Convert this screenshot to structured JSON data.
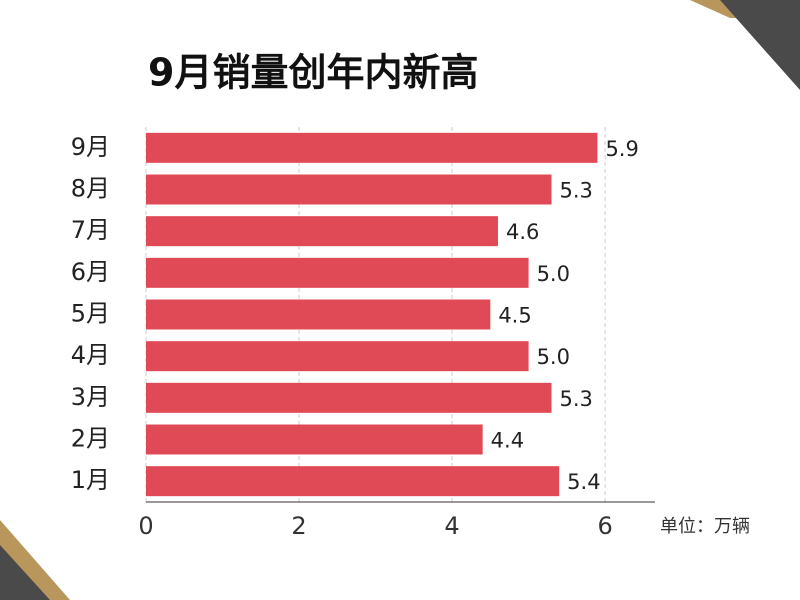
{
  "chart_data": {
    "type": "bar",
    "orientation": "horizontal",
    "title": "9月销量创年内新高",
    "categories": [
      "1月",
      "2月",
      "3月",
      "4月",
      "5月",
      "6月",
      "7月",
      "8月",
      "9月"
    ],
    "values": [
      5.4,
      4.4,
      5.3,
      5.0,
      4.5,
      5.0,
      4.6,
      5.3,
      5.9
    ],
    "value_labels": [
      "5.4",
      "4.4",
      "5.3",
      "5.0",
      "4.5",
      "5.0",
      "4.6",
      "5.3",
      "5.9"
    ],
    "color": "#e04a57",
    "xlim": [
      0,
      6.6
    ],
    "xticks": [
      0,
      2,
      4,
      6
    ],
    "grid": true,
    "unit_label": "单位：万辆"
  }
}
